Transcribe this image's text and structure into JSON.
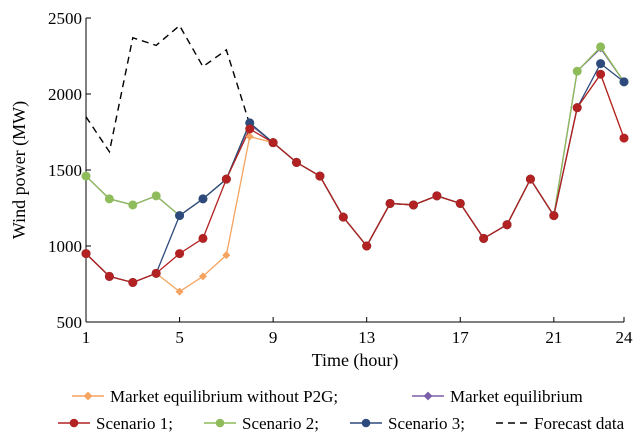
{
  "chart_data": {
    "type": "line",
    "title": "",
    "xlabel": "Time (hour)",
    "ylabel": "Wind power (MW)",
    "xlim": [
      1,
      24
    ],
    "ylim": [
      500,
      2500
    ],
    "x_ticks": [
      1,
      5,
      9,
      13,
      17,
      21,
      24
    ],
    "y_ticks": [
      500,
      1000,
      1500,
      2000,
      2500
    ],
    "grid": false,
    "legend_position": "bottom",
    "x": [
      1,
      2,
      3,
      4,
      5,
      6,
      7,
      8,
      9,
      10,
      11,
      12,
      13,
      14,
      15,
      16,
      17,
      18,
      19,
      20,
      21,
      22,
      23,
      24
    ],
    "forecast": {
      "name": "Forecast data",
      "color": "#000000",
      "x": [
        1,
        2,
        3,
        4,
        5,
        6,
        7,
        8
      ],
      "values": [
        1850,
        1620,
        2370,
        2320,
        2450,
        2180,
        2290,
        1800
      ]
    },
    "series": [
      {
        "name": "Market equilibrium without P2G",
        "color": "#f4a460",
        "marker": "diamond",
        "values": [
          950,
          800,
          760,
          820,
          700,
          800,
          940,
          1720,
          1680,
          1550,
          1460,
          1190,
          1000,
          1280,
          1270,
          1330,
          1280,
          1050,
          1140,
          1440,
          1200,
          1910,
          2130,
          1710
        ]
      },
      {
        "name": "Market equilibrium",
        "color": "#7a5fa8",
        "marker": "diamond",
        "values": [
          1460,
          1310,
          1270,
          1330,
          1200,
          1310,
          1440,
          1800,
          1680,
          1550,
          1460,
          1190,
          1000,
          1280,
          1270,
          1330,
          1280,
          1050,
          1140,
          1440,
          1200,
          2150,
          2300,
          2080
        ]
      },
      {
        "name": "Scenario 1",
        "color": "#b22222",
        "marker": "circle",
        "values": [
          950,
          800,
          760,
          820,
          950,
          1050,
          1440,
          1770,
          1680,
          1550,
          1460,
          1190,
          1000,
          1280,
          1270,
          1330,
          1280,
          1050,
          1140,
          1440,
          1200,
          1910,
          2130,
          1710
        ]
      },
      {
        "name": "Scenario 2",
        "color": "#8fbc5a",
        "marker": "circle",
        "values": [
          1460,
          1310,
          1270,
          1330,
          1200,
          1310,
          1440,
          1810,
          1680,
          1550,
          1460,
          1190,
          1000,
          1280,
          1270,
          1330,
          1280,
          1050,
          1140,
          1440,
          1200,
          2150,
          2310,
          2080
        ]
      },
      {
        "name": "Scenario 3",
        "color": "#2e4a7d",
        "marker": "circle",
        "values": [
          950,
          800,
          760,
          820,
          1200,
          1310,
          1440,
          1810,
          1680,
          1550,
          1460,
          1190,
          1000,
          1280,
          1270,
          1330,
          1280,
          1050,
          1140,
          1440,
          1200,
          1910,
          2200,
          2080
        ]
      }
    ]
  }
}
